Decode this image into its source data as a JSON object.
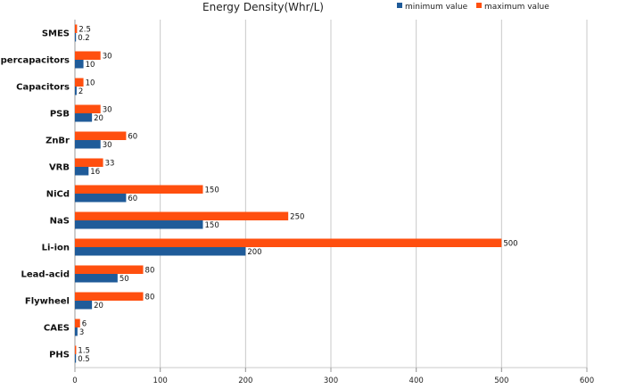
{
  "chart_data": {
    "type": "bar",
    "orientation": "horizontal",
    "title": "Energy Density(Whr/L)",
    "xlabel": "",
    "ylabel": "",
    "xlim": [
      0,
      600
    ],
    "xticks": [
      0,
      100,
      200,
      300,
      400,
      500,
      600
    ],
    "grid": true,
    "legend_position": "top-right",
    "categories": [
      "SMES",
      "Supercapacitors",
      "Capacitors",
      "PSB",
      "ZnBr",
      "VRB",
      "NiCd",
      "NaS",
      "Li-ion",
      "Lead-acid",
      "Flywheel",
      "CAES",
      "PHS"
    ],
    "series": [
      {
        "name": "maximum value",
        "color": "#ff4f0f",
        "values": [
          2.5,
          30,
          10,
          30,
          60,
          33,
          150,
          250,
          500,
          80,
          80,
          6,
          1.5
        ],
        "labels": [
          "2.5",
          "30",
          "10",
          "30",
          "60",
          "33",
          "150",
          "250",
          "500",
          "80",
          "80",
          "6",
          "1.5"
        ]
      },
      {
        "name": "minimum value",
        "color": "#1f5b99",
        "values": [
          0.2,
          10,
          2,
          20,
          30,
          16,
          60,
          150,
          200,
          50,
          20,
          3,
          0.5
        ],
        "labels": [
          "0.2",
          "10",
          "2",
          "20",
          "30",
          "16",
          "60",
          "150",
          "200",
          "50",
          "20",
          "3",
          "0.5"
        ]
      }
    ],
    "legend": [
      {
        "name": "minimum value",
        "color": "#1f5b99"
      },
      {
        "name": "maximum value",
        "color": "#ff4f0f"
      }
    ]
  }
}
